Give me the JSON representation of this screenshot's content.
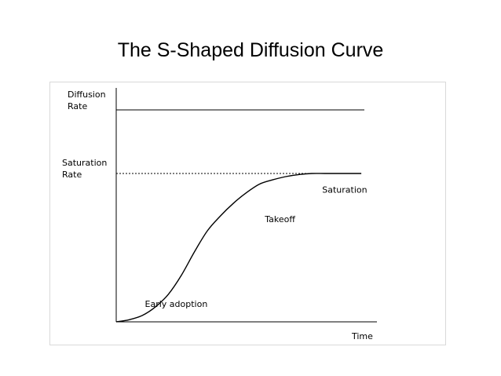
{
  "title": "The S-Shaped Diffusion Curve",
  "chart_data": {
    "type": "line",
    "title": "The S-Shaped Diffusion Curve",
    "xlabel": "Time",
    "ylabel_line1": "Diffusion",
    "ylabel_line2": "Rate",
    "saturation_label_line1": "Saturation",
    "saturation_label_line2": "Rate",
    "xlim": [
      0,
      100
    ],
    "ylim": [
      0,
      100
    ],
    "max_rate": 100,
    "saturation_rate": 70,
    "series": [
      {
        "x": [
          0,
          5,
          10,
          15,
          20,
          25,
          30,
          35,
          40,
          45,
          50,
          55,
          60,
          65,
          70,
          75,
          80,
          85,
          90,
          94
        ],
        "y": [
          0,
          1,
          3,
          7,
          13,
          22,
          33,
          43,
          50,
          56,
          61,
          65,
          67,
          68.5,
          69.5,
          70,
          70,
          70,
          70,
          70
        ]
      }
    ],
    "annotations": [
      {
        "text": "Early adoption",
        "x": 11,
        "y": 7
      },
      {
        "text": "Takeoff",
        "x": 57,
        "y": 47
      },
      {
        "text": "Saturation",
        "x": 79,
        "y": 61
      }
    ],
    "grid": false,
    "legend": "none"
  }
}
